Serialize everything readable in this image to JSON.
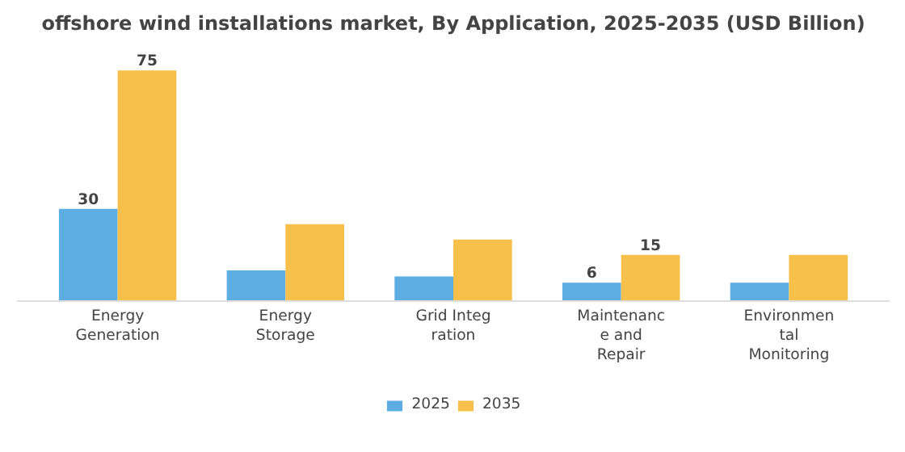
{
  "chart_data": {
    "type": "bar",
    "title": "offshore wind installations market, By Application, 2025-2035 (USD Billion)",
    "categories": [
      "Energy\nGeneration",
      "Energy\nStorage",
      "Grid Integ\nration",
      "Maintenanc\ne and\nRepair",
      "Environmen\ntal\nMonitoring"
    ],
    "series": [
      {
        "name": "2025",
        "color": "#5dade2",
        "values": [
          30,
          10,
          8,
          6,
          6
        ],
        "value_labels": [
          "30",
          null,
          null,
          "6",
          null
        ]
      },
      {
        "name": "2035",
        "color": "#f7c04a",
        "values": [
          75,
          25,
          20,
          15,
          15
        ],
        "value_labels": [
          "75",
          null,
          null,
          "15",
          null
        ]
      }
    ],
    "legend": "bottom"
  }
}
